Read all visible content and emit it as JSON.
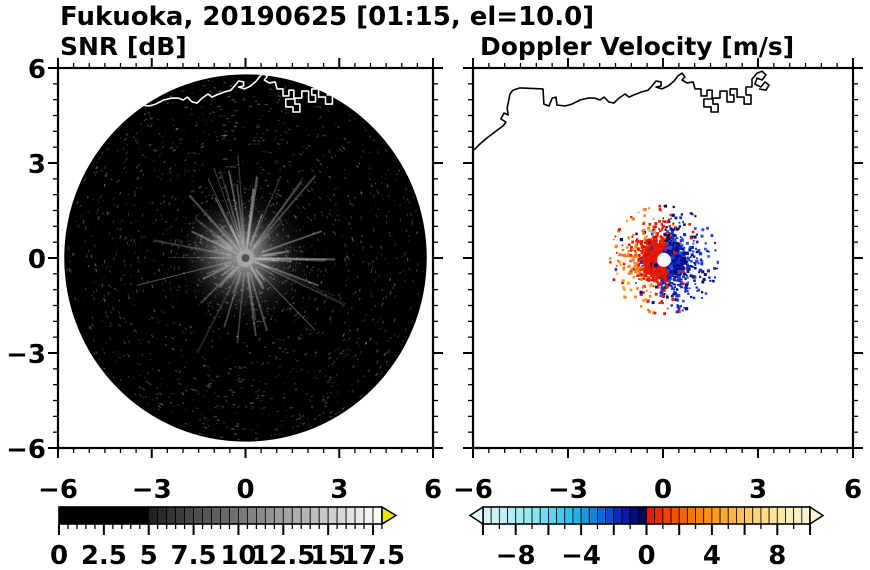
{
  "header": {
    "title": "Fukuoka, 20190625 [01:15, el=10.0]",
    "left_subtitle": "SNR [dB]",
    "right_subtitle": "Doppler Velocity [m/s]"
  },
  "chart_data": {
    "figure": "Dual-panel Doppler radar PPI display, Fukuoka, 2019-06-25 01:15, elevation 10.0 deg",
    "type": "heatmap",
    "axes": {
      "xlim": [
        -6,
        6
      ],
      "ylim": [
        -6,
        6
      ],
      "units": "km",
      "major_ticks": [
        -6,
        -3,
        0,
        3,
        6
      ],
      "x_tick_labels": [
        "−6",
        "−3",
        "0",
        "3",
        "6"
      ],
      "y_tick_labels": [
        "6",
        "3",
        "0",
        "−3",
        "−6"
      ],
      "minor_tick_interval": 0.5,
      "grid": false,
      "frame_color": "#000000"
    },
    "panels": [
      {
        "id": "snr",
        "title": "SNR [dB]",
        "background": "#ffffff",
        "scan_disc": {
          "center": [
            0,
            0
          ],
          "radius_km": 5.8,
          "fill": "#000000",
          "noise": "sparse faint gray speckle over full disc"
        },
        "ground_echo_starburst": {
          "center": [
            0,
            0
          ],
          "bright_radius_km": 2.1,
          "streak_max_radius_km": 3.2,
          "fog_color": "#a8a8a8",
          "streak_color": "#c8c8c8",
          "core_color": "#a6a6a6",
          "center_dot_color": "#545454"
        },
        "coastline_color": "#ffffff"
      },
      {
        "id": "doppler",
        "title": "Doppler Velocity [m/s]",
        "background": "#ffffff",
        "velocity_couplet": {
          "center": [
            0.03,
            -0.06
          ],
          "hole_radius_km": 0.22,
          "dense_radius_km": 0.85,
          "max_extent_km": 1.7,
          "positive_west_side": {
            "colors": [
              "#e81600",
              "#f02000",
              "#f57f10",
              "#fb9b2a"
            ],
            "approx_values_ms": [
              0.5,
              5
            ]
          },
          "negative_east_side": {
            "colors": [
              "#000d86",
              "#1430c8",
              "#2750e0"
            ],
            "approx_values_ms": [
              -3,
              -0.5
            ]
          },
          "boundary_speck_color": "#0d0d20",
          "streaks": [
            {
              "angle_deg": 72,
              "from_km": 0.8,
              "to_km": 1.65,
              "color": "blue"
            },
            {
              "angle_deg": 55,
              "from_km": 0.7,
              "to_km": 1.3,
              "color": "blue"
            },
            {
              "angle_deg": 95,
              "from_km": 0.6,
              "to_km": 1.15,
              "color": "blue"
            },
            {
              "angle_deg": 187,
              "from_km": 0.8,
              "to_km": 1.45,
              "color": "orange"
            },
            {
              "angle_deg": 215,
              "from_km": 0.6,
              "to_km": 1.1,
              "color": "red"
            },
            {
              "angle_deg": 160,
              "from_km": 0.7,
              "to_km": 1.2,
              "color": "orange"
            }
          ],
          "outlier_dots": [
            [
              -1.52,
              0.41,
              "orange"
            ],
            [
              -1.26,
              -0.13,
              "red"
            ],
            [
              1.17,
              0.0,
              "blue"
            ],
            [
              1.1,
              -0.95,
              "blue"
            ],
            [
              0.41,
              -1.64,
              "blue"
            ],
            [
              0.92,
              0.88,
              "red"
            ],
            [
              -1.11,
              0.69,
              "orange"
            ],
            [
              -1.35,
              0.15,
              "orange"
            ],
            [
              0.95,
              -1.2,
              "blue"
            ]
          ]
        },
        "coastline_color": "#000000"
      }
    ],
    "coastline_km": [
      [
        -5.97,
        3.41
      ],
      [
        -5.81,
        3.57
      ],
      [
        -5.56,
        3.79
      ],
      [
        -5.27,
        4.01
      ],
      [
        -5.05,
        4.17
      ],
      [
        -4.96,
        4.29
      ],
      [
        -5.12,
        4.39
      ],
      [
        -5.02,
        4.58
      ],
      [
        -4.89,
        4.52
      ],
      [
        -4.92,
        4.74
      ],
      [
        -4.83,
        5.18
      ],
      [
        -4.74,
        5.3
      ],
      [
        -4.52,
        5.37
      ],
      [
        -3.79,
        5.34
      ],
      [
        -3.76,
        4.86
      ],
      [
        -3.6,
        4.8
      ],
      [
        -3.5,
        5.05
      ],
      [
        -3.38,
        5.08
      ],
      [
        -3.35,
        4.83
      ],
      [
        -3.09,
        4.8
      ],
      [
        -2.87,
        4.86
      ],
      [
        -2.62,
        4.99
      ],
      [
        -2.37,
        5.05
      ],
      [
        -2.15,
        5.05
      ],
      [
        -1.99,
        4.99
      ],
      [
        -1.86,
        5.08
      ],
      [
        -1.71,
        4.93
      ],
      [
        -1.55,
        4.89
      ],
      [
        -1.39,
        5.05
      ],
      [
        -1.2,
        5.18
      ],
      [
        -1.07,
        5.08
      ],
      [
        -0.92,
        5.15
      ],
      [
        -0.69,
        5.24
      ],
      [
        -0.47,
        5.3
      ],
      [
        -0.35,
        5.43
      ],
      [
        -0.22,
        5.59
      ],
      [
        -0.06,
        5.56
      ],
      [
        -0.06,
        5.43
      ],
      [
        -0.22,
        5.4
      ],
      [
        -0.03,
        5.34
      ],
      [
        0.16,
        5.43
      ],
      [
        0.35,
        5.59
      ],
      [
        0.47,
        5.75
      ],
      [
        0.6,
        5.84
      ],
      [
        0.69,
        5.72
      ],
      [
        0.6,
        5.62
      ],
      [
        0.76,
        5.53
      ],
      [
        0.95,
        5.56
      ],
      [
        1.01,
        5.34
      ],
      [
        1.2,
        5.34
      ],
      [
        1.2,
        5.12
      ],
      [
        1.39,
        5.12
      ],
      [
        1.39,
        5.3
      ],
      [
        1.55,
        5.3
      ],
      [
        1.55,
        5.02
      ],
      [
        1.29,
        5.02
      ],
      [
        1.29,
        4.77
      ],
      [
        1.52,
        4.77
      ],
      [
        1.52,
        4.61
      ],
      [
        1.74,
        4.61
      ],
      [
        1.74,
        4.86
      ],
      [
        1.58,
        4.86
      ],
      [
        1.58,
        5.05
      ],
      [
        1.8,
        5.05
      ],
      [
        1.8,
        5.27
      ],
      [
        2.02,
        5.27
      ],
      [
        2.02,
        4.93
      ],
      [
        2.24,
        4.93
      ],
      [
        2.24,
        5.15
      ],
      [
        2.12,
        5.15
      ],
      [
        2.12,
        5.34
      ],
      [
        2.34,
        5.34
      ],
      [
        2.34,
        5.08
      ],
      [
        2.56,
        5.08
      ],
      [
        2.56,
        4.86
      ],
      [
        2.78,
        4.86
      ],
      [
        2.78,
        5.15
      ],
      [
        2.62,
        5.15
      ],
      [
        2.62,
        5.4
      ],
      [
        2.81,
        5.4
      ],
      [
        2.81,
        5.65
      ],
      [
        2.97,
        5.84
      ],
      [
        3.13,
        5.9
      ],
      [
        3.25,
        5.78
      ],
      [
        3.13,
        5.62
      ],
      [
        2.97,
        5.68
      ],
      [
        2.9,
        5.49
      ],
      [
        3.09,
        5.4
      ],
      [
        3.22,
        5.56
      ],
      [
        3.35,
        5.46
      ],
      [
        3.25,
        5.3
      ],
      [
        3.03,
        5.34
      ]
    ],
    "colorbars": [
      {
        "id": "snr",
        "label": "SNR [dB]",
        "range": [
          0,
          18
        ],
        "segment_width": 0.5,
        "tick_label_values": [
          0,
          2.5,
          5,
          7.5,
          10,
          12.5,
          15,
          17.5
        ],
        "tick_labels": [
          "0",
          "2.5",
          "5",
          "7.5",
          "10",
          "12.5",
          "15",
          "17.5"
        ],
        "minor_tick_interval": 0.5,
        "major_tick_interval": 2.5,
        "solid_black_until": 5,
        "gray_ramp": {
          "from_value": 5,
          "from_color": "#1e1e1e",
          "to_value": 18,
          "to_color": "#ffffff"
        },
        "overflow_arrow_color": "#f2e400"
      },
      {
        "id": "doppler",
        "label": "Doppler Velocity [m/s]",
        "range": [
          -10,
          10
        ],
        "segment_width": 0.5,
        "tick_label_values": [
          -8,
          -4,
          0,
          4,
          8
        ],
        "tick_labels": [
          "−8",
          "−4",
          "0",
          "4",
          "8"
        ],
        "minor_tick_interval": 1,
        "major_tick_interval": 4,
        "color_stops": [
          [
            -10,
            "#dff7f8"
          ],
          [
            -8.5,
            "#b8eff5"
          ],
          [
            -7,
            "#8fe6f2"
          ],
          [
            -5.5,
            "#4fd3ec"
          ],
          [
            -4.5,
            "#22bce6"
          ],
          [
            -3.5,
            "#158fdb"
          ],
          [
            -2.5,
            "#0f5ad0"
          ],
          [
            -1.75,
            "#0c2cc0"
          ],
          [
            -1,
            "#07129a"
          ],
          [
            -0.5,
            "#030a66"
          ],
          [
            -0.001,
            "#02053d"
          ],
          [
            0.001,
            "#e41000"
          ],
          [
            0.75,
            "#ec2d00"
          ],
          [
            1.75,
            "#f55200"
          ],
          [
            3,
            "#fb7c00"
          ],
          [
            4.25,
            "#ff9d1a"
          ],
          [
            5.5,
            "#ffbb4e"
          ],
          [
            6.75,
            "#ffd677"
          ],
          [
            8,
            "#fbe79e"
          ],
          [
            9,
            "#f8efbd"
          ],
          [
            10,
            "#f6f2cf"
          ]
        ],
        "under_arrow_color": "#e8fbfc",
        "over_arrow_color": "#f8f4d4"
      }
    ]
  }
}
